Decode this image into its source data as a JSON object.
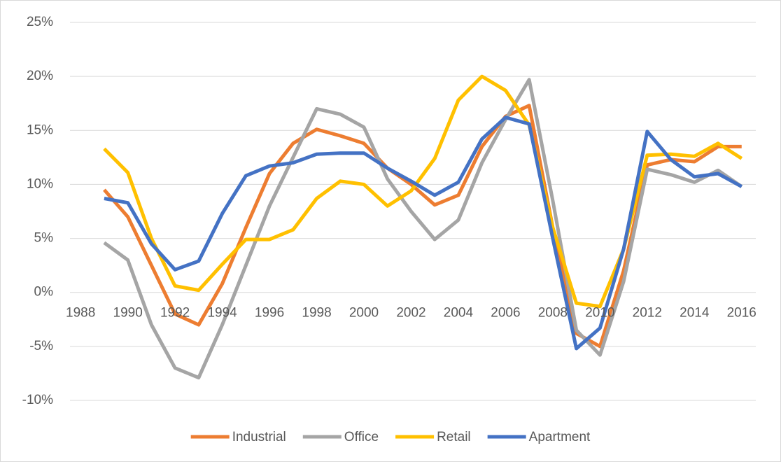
{
  "chart_data": {
    "type": "line",
    "x": [
      1989,
      1990,
      1991,
      1992,
      1993,
      1994,
      1995,
      1996,
      1997,
      1998,
      1999,
      2000,
      2001,
      2002,
      2003,
      2004,
      2005,
      2006,
      2007,
      2008,
      2009,
      2010,
      2011,
      2012,
      2013,
      2014,
      2015,
      2016
    ],
    "series": [
      {
        "name": "Industrial",
        "color": "#ED7D31",
        "values": [
          9.5,
          7,
          2.5,
          -2,
          -3,
          0.8,
          6,
          11,
          13.8,
          15.1,
          14.5,
          13.8,
          11.5,
          10,
          8.1,
          9,
          13.5,
          16.3,
          17.3,
          6,
          -3.8,
          -5,
          2,
          11.8,
          12.3,
          12.1,
          13.5,
          13.5
        ]
      },
      {
        "name": "Office",
        "color": "#A5A5A5",
        "values": [
          4.6,
          3,
          -3,
          -7,
          -7.9,
          -3,
          2.5,
          8,
          12.5,
          17,
          16.5,
          15.3,
          10.5,
          7.5,
          4.9,
          6.7,
          12,
          16,
          19.7,
          8.5,
          -3.5,
          -5.8,
          1,
          11.4,
          10.9,
          10.2,
          11.3,
          9.8
        ]
      },
      {
        "name": "Retail",
        "color": "#FFC000",
        "values": [
          13.3,
          11.1,
          5,
          0.6,
          0.2,
          2.6,
          4.9,
          4.9,
          5.8,
          8.7,
          10.3,
          10,
          8,
          9.4,
          12.4,
          17.8,
          20,
          18.7,
          15.5,
          6,
          -1,
          -1.3,
          4,
          12.7,
          12.8,
          12.6,
          13.8,
          12.4
        ]
      },
      {
        "name": "Apartment",
        "color": "#4472C4",
        "values": [
          8.7,
          8.3,
          4.5,
          2.1,
          2.9,
          7.3,
          10.8,
          11.7,
          12,
          12.8,
          12.9,
          12.9,
          11.5,
          10.3,
          9,
          10.2,
          14.2,
          16.2,
          15.6,
          5,
          -5.2,
          -3.3,
          4,
          14.9,
          12.3,
          10.7,
          11,
          9.8
        ]
      }
    ],
    "xlim": [
      1987.55,
      2016.6
    ],
    "xticks": [
      1988,
      1990,
      1992,
      1994,
      1996,
      1998,
      2000,
      2002,
      2004,
      2006,
      2008,
      2010,
      2012,
      2014,
      2016
    ],
    "ylim": [
      -12.5,
      27.5
    ],
    "yticks": [
      {
        "value": -10,
        "label": "-10%"
      },
      {
        "value": -5,
        "label": "-5%"
      },
      {
        "value": 0,
        "label": "0%"
      },
      {
        "value": 5,
        "label": "5%"
      },
      {
        "value": 10,
        "label": "10%"
      },
      {
        "value": 15,
        "label": "15%"
      },
      {
        "value": 20,
        "label": "20%"
      },
      {
        "value": 25,
        "label": "25%"
      }
    ],
    "grid": true,
    "legend": "bottom"
  }
}
